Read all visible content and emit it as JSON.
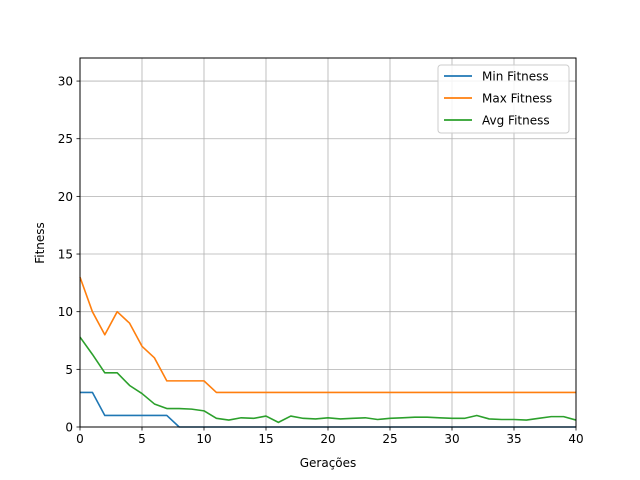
{
  "chart_data": {
    "type": "line",
    "title": "",
    "xlabel": "Gerações",
    "ylabel": "Fitness",
    "xlim": [
      0,
      40
    ],
    "ylim": [
      0,
      32
    ],
    "x_ticks": [
      0,
      5,
      10,
      15,
      20,
      25,
      30,
      35,
      40
    ],
    "y_ticks": [
      0,
      5,
      10,
      15,
      20,
      25,
      30
    ],
    "grid": true,
    "legend_position": "top-right",
    "x": [
      0,
      1,
      2,
      3,
      4,
      5,
      6,
      7,
      8,
      9,
      10,
      11,
      12,
      13,
      14,
      15,
      16,
      17,
      18,
      19,
      20,
      21,
      22,
      23,
      24,
      25,
      26,
      27,
      28,
      29,
      30,
      31,
      32,
      33,
      34,
      35,
      36,
      37,
      38,
      39,
      40
    ],
    "series": [
      {
        "name": "Min Fitness",
        "color": "#1f77b4",
        "values": [
          3,
          3,
          1,
          1,
          1,
          1,
          1,
          1,
          0,
          0,
          0,
          0,
          0,
          0,
          0,
          0,
          0,
          0,
          0,
          0,
          0,
          0,
          0,
          0,
          0,
          0,
          0,
          0,
          0,
          0,
          0,
          0,
          0,
          0,
          0,
          0,
          0,
          0,
          0,
          0,
          0
        ]
      },
      {
        "name": "Max Fitness",
        "color": "#ff7f0e",
        "values": [
          13,
          10,
          8,
          10,
          9,
          7,
          6,
          4,
          4,
          4,
          4,
          3,
          3,
          3,
          3,
          3,
          3,
          3,
          3,
          3,
          3,
          3,
          3,
          3,
          3,
          3,
          3,
          3,
          3,
          3,
          3,
          3,
          3,
          3,
          3,
          3,
          3,
          3,
          3,
          3,
          3
        ]
      },
      {
        "name": "Avg Fitness",
        "color": "#2ca02c",
        "values": [
          7.8,
          6.3,
          4.7,
          4.7,
          3.6,
          2.9,
          2.0,
          1.6,
          1.6,
          1.55,
          1.4,
          0.75,
          0.6,
          0.8,
          0.75,
          0.95,
          0.4,
          0.95,
          0.75,
          0.7,
          0.8,
          0.7,
          0.75,
          0.8,
          0.65,
          0.75,
          0.8,
          0.85,
          0.85,
          0.8,
          0.75,
          0.75,
          1.0,
          0.7,
          0.65,
          0.65,
          0.6,
          0.75,
          0.9,
          0.9,
          0.6
        ]
      }
    ]
  }
}
